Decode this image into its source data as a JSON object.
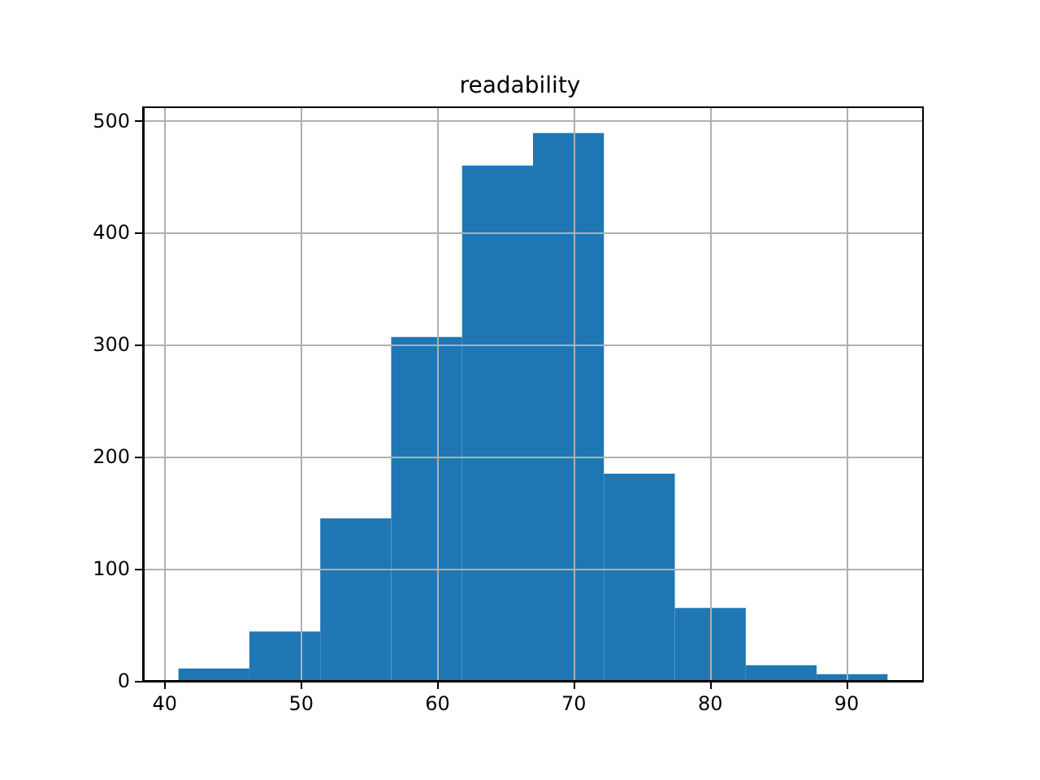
{
  "chart_data": {
    "type": "histogram",
    "title": "readability",
    "bins": [
      41.0,
      46.2,
      51.4,
      56.6,
      61.8,
      67.0,
      72.2,
      77.4,
      82.6,
      87.8,
      93.0
    ],
    "values": [
      11,
      44,
      145,
      307,
      460,
      489,
      185,
      65,
      14,
      6
    ],
    "color": "#1f77b4",
    "xlim": [
      38.4,
      95.6
    ],
    "xticks": [
      40,
      50,
      60,
      70,
      80,
      90
    ],
    "ylim": [
      0,
      512
    ],
    "yticks": [
      0,
      100,
      200,
      300,
      400,
      500
    ],
    "grid": true
  }
}
